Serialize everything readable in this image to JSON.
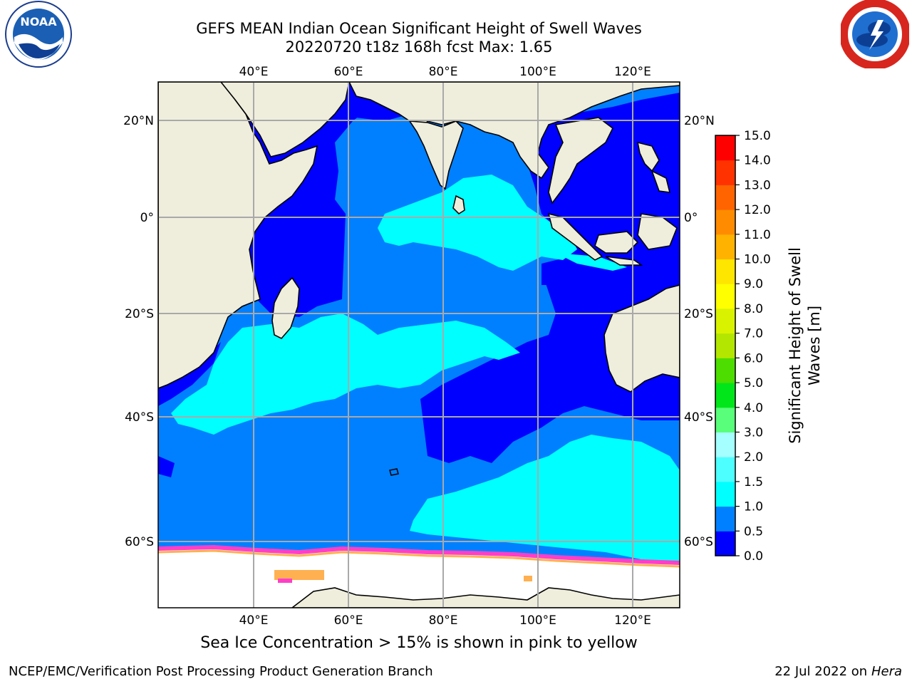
{
  "header": {
    "title_line1": "GEFS MEAN Indian Ocean Significant Height of Swell Waves",
    "title_line2": "20220720 t18z 168h fcst   Max: 1.65"
  },
  "logos": {
    "left": "noaa-logo",
    "left_text": "NOAA",
    "right": "nws-logo"
  },
  "map": {
    "projection": "equirectangular",
    "lon_range": [
      20,
      130
    ],
    "lat_range": [
      -71,
      28
    ],
    "lon_ticks": [
      "40°E",
      "60°E",
      "80°E",
      "100°E",
      "120°E"
    ],
    "lat_ticks": [
      "20°N",
      "0°",
      "20°S",
      "40°S",
      "60°S"
    ],
    "colors": {
      "land": "#efeedd",
      "ocean_0_0.5": "#0000ff",
      "ocean_0.5_1.0": "#0080ff",
      "ocean_1.0_1.5": "#00ffff",
      "ice": "#ffffff",
      "ice_edge_pink": "#ff3ec8",
      "ice_edge_yellow": "#ffb050"
    }
  },
  "colorbar": {
    "label": "Significant Height of Swell Waves [m]",
    "label_line1": "Significant Height of Swell",
    "label_line2": "Waves [m]",
    "ticks": [
      "0.0",
      "0.5",
      "1.0",
      "1.5",
      "2.0",
      "3.0",
      "4.0",
      "5.0",
      "6.0",
      "7.0",
      "8.0",
      "9.0",
      "10.0",
      "11.0",
      "12.0",
      "13.0",
      "14.0",
      "15.0"
    ],
    "colors": [
      "#0000ff",
      "#0080ff",
      "#00ffff",
      "#4dffff",
      "#a6ffff",
      "#59ff7a",
      "#00e61a",
      "#4ddd00",
      "#b3e600",
      "#d9f200",
      "#ffff00",
      "#ffe600",
      "#ffb300",
      "#ff8c00",
      "#ff6400",
      "#ff3200",
      "#ff0000"
    ]
  },
  "caption": "Sea Ice Concentration > 15% is shown in pink to yellow",
  "footer": {
    "left": "NCEP/EMC/Verification Post Processing Product Generation Branch",
    "right_date": "22 Jul 2022 on ",
    "right_host": "Hera"
  }
}
